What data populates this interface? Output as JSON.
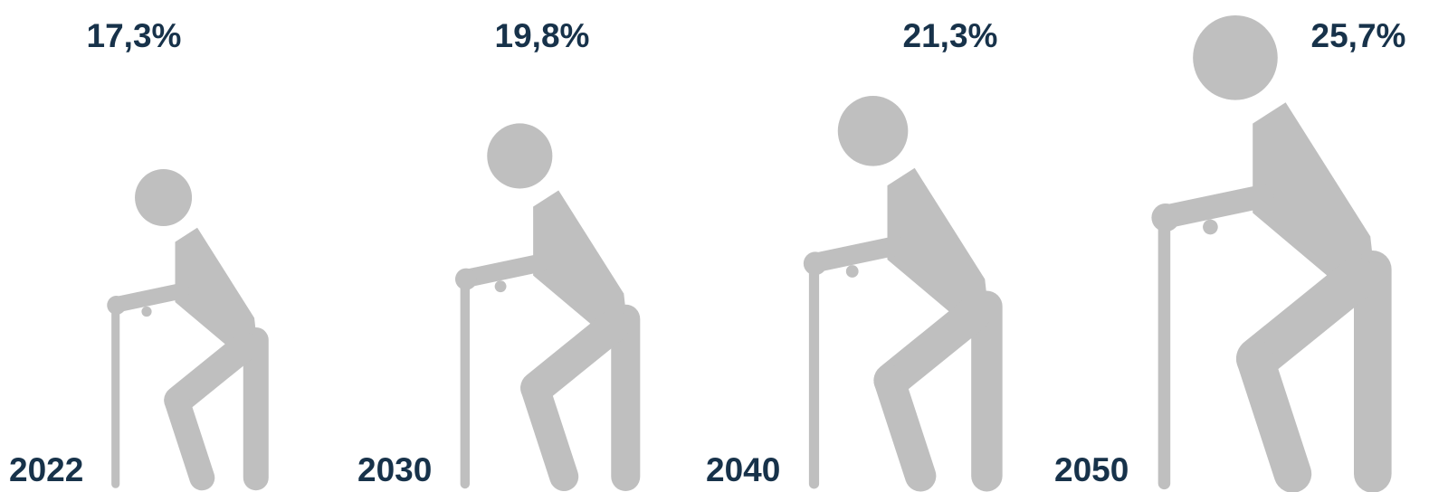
{
  "chart_data": {
    "type": "pictogram",
    "categories": [
      "2022",
      "2030",
      "2040",
      "2050"
    ],
    "values": [
      17.3,
      19.8,
      21.3,
      25.7
    ],
    "value_labels": [
      "17,3%",
      "19,8%",
      "21,3%",
      "25,7%"
    ],
    "color": "#bfbfbf"
  }
}
